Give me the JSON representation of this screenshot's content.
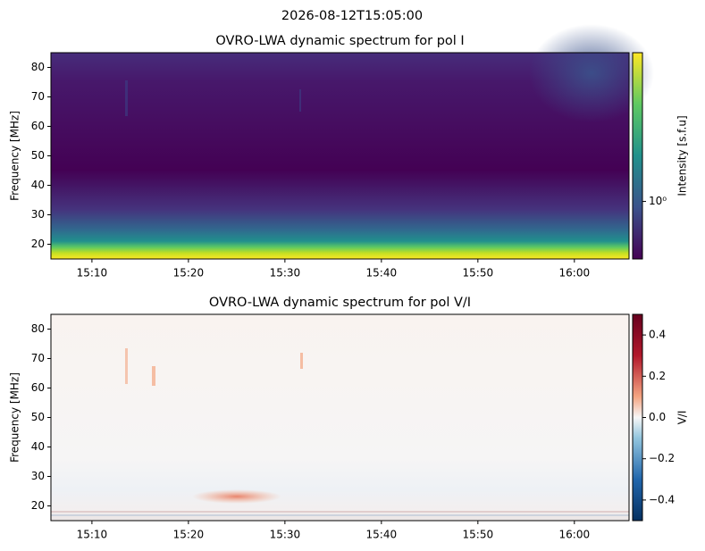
{
  "suptitle": "2026-08-12T15:05:00",
  "chart_data": [
    {
      "type": "spectrogram",
      "title": "OVRO-LWA dynamic spectrum for pol I",
      "ylabel": "Frequency [MHz]",
      "xlim": [
        "15:05:45",
        "16:05:40"
      ],
      "xticks": [
        "15:10",
        "15:20",
        "15:30",
        "15:40",
        "15:50",
        "16:00"
      ],
      "ylim": [
        15,
        85
      ],
      "yticks": [
        20,
        30,
        40,
        50,
        60,
        70,
        80
      ],
      "colorbar": {
        "label": "Intensity [s.f.u]",
        "colormap": "viridis",
        "log": true,
        "clim": [
          0.5,
          6
        ],
        "ticks": [
          {
            "value": 1,
            "label": "10⁰"
          }
        ]
      }
    },
    {
      "type": "spectrogram",
      "title": "OVRO-LWA dynamic spectrum for pol V/I",
      "ylabel": "Frequency [MHz]",
      "xlim": [
        "15:05:45",
        "16:05:40"
      ],
      "xticks": [
        "15:10",
        "15:20",
        "15:30",
        "15:40",
        "15:50",
        "16:00"
      ],
      "ylim": [
        15,
        85
      ],
      "yticks": [
        20,
        30,
        40,
        50,
        60,
        70,
        80
      ],
      "colorbar": {
        "label": "V/I",
        "colormap": "RdBu_r",
        "log": false,
        "clim": [
          -0.5,
          0.5
        ],
        "ticks": [
          {
            "value": -0.4,
            "label": "−0.4"
          },
          {
            "value": -0.2,
            "label": "−0.2"
          },
          {
            "value": 0,
            "label": "0.0"
          },
          {
            "value": 0.2,
            "label": "0.2"
          },
          {
            "value": 0.4,
            "label": "0.4"
          }
        ]
      }
    }
  ]
}
